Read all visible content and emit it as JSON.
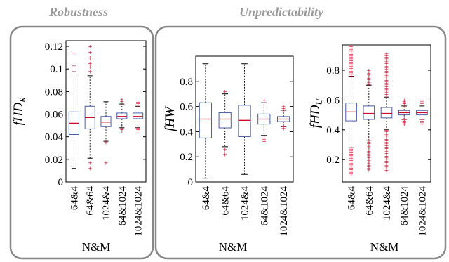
{
  "sections": [
    {
      "title": "Robustness"
    },
    {
      "title": "Unpredictability"
    }
  ],
  "colors": {
    "box": "#4a5fa8",
    "median": "#c8102e",
    "outlier": "#c8102e",
    "whisker": "#000000",
    "frame": "#888888",
    "section_title": "#9a9a9a"
  },
  "chart_data": [
    {
      "type": "box",
      "ylabel": "fHD",
      "ylabel_sub": "R",
      "xlabel": "N&M",
      "ylim": [
        0,
        0.125
      ],
      "yticks": [
        0,
        0.02,
        0.04,
        0.06,
        0.08,
        0.1,
        0.12
      ],
      "ytick_labels": [
        "0",
        "0.02",
        "0.04",
        "0.06",
        "0.08",
        "0.1",
        "0.12"
      ],
      "categories": [
        "64&4",
        "64&64",
        "1024&4",
        "64&1024",
        "1024&1024"
      ],
      "boxes": [
        {
          "whislo": 0.012,
          "q1": 0.042,
          "med": 0.052,
          "q3": 0.062,
          "whishi": 0.093,
          "fliers": [
            0.098,
            0.103,
            0.114
          ],
          "dense": false
        },
        {
          "whislo": 0.021,
          "q1": 0.047,
          "med": 0.057,
          "q3": 0.067,
          "whishi": 0.094,
          "fliers": [
            0.012,
            0.017,
            0.098,
            0.102,
            0.105,
            0.11,
            0.115,
            0.12
          ],
          "dense": false
        },
        {
          "whislo": 0.036,
          "q1": 0.049,
          "med": 0.053,
          "q3": 0.058,
          "whishi": 0.071,
          "fliers": [
            0.017,
            0.035
          ],
          "dense": true
        },
        {
          "whislo": 0.048,
          "q1": 0.056,
          "med": 0.058,
          "q3": 0.061,
          "whishi": 0.069,
          "fliers": [
            0.045,
            0.048,
            0.07,
            0.073
          ],
          "dense": true
        },
        {
          "whislo": 0.048,
          "q1": 0.056,
          "med": 0.058,
          "q3": 0.061,
          "whishi": 0.067,
          "fliers": [
            0.045,
            0.048,
            0.068,
            0.071
          ],
          "dense": true
        }
      ]
    },
    {
      "type": "box",
      "ylabel": "fHW",
      "ylabel_sub": "",
      "xlabel": "N&M",
      "ylim": [
        0,
        1.0
      ],
      "yticks": [
        0,
        0.2,
        0.4,
        0.6,
        0.8
      ],
      "ytick_labels": [
        "0",
        "0.2",
        "0.4",
        "0.6",
        "0.8"
      ],
      "categories": [
        "64&4",
        "64&64",
        "1024&4",
        "64&1024",
        "1024&1024"
      ],
      "boxes": [
        {
          "whislo": 0.03,
          "q1": 0.35,
          "med": 0.5,
          "q3": 0.63,
          "whishi": 0.94,
          "fliers": [],
          "dense": false
        },
        {
          "whislo": 0.28,
          "q1": 0.43,
          "med": 0.5,
          "q3": 0.55,
          "whishi": 0.7,
          "fliers": [
            0.22,
            0.26,
            0.72
          ],
          "dense": false
        },
        {
          "whislo": 0.06,
          "q1": 0.36,
          "med": 0.49,
          "q3": 0.61,
          "whishi": 0.94,
          "fliers": [],
          "dense": false
        },
        {
          "whislo": 0.37,
          "q1": 0.46,
          "med": 0.5,
          "q3": 0.54,
          "whishi": 0.63,
          "fliers": [
            0.32,
            0.35,
            0.64,
            0.65
          ],
          "dense": true
        },
        {
          "whislo": 0.44,
          "q1": 0.48,
          "med": 0.5,
          "q3": 0.52,
          "whishi": 0.57,
          "fliers": [
            0.42,
            0.44,
            0.57,
            0.6
          ],
          "dense": true
        }
      ]
    },
    {
      "type": "box",
      "ylabel": "fHD",
      "ylabel_sub": "U",
      "xlabel": "N&M",
      "ylim": [
        0.05,
        0.97
      ],
      "yticks": [
        0.2,
        0.4,
        0.6,
        0.8
      ],
      "ytick_labels": [
        "0.2",
        "0.4",
        "0.6",
        "0.8"
      ],
      "categories": [
        "64&4",
        "64&64",
        "1024&4",
        "64&1024",
        "1024&1024"
      ],
      "boxes": [
        {
          "whislo": 0.28,
          "q1": 0.46,
          "med": 0.52,
          "q3": 0.58,
          "whishi": 0.76,
          "fliers": [
            0.1,
            0.28,
            0.76,
            0.96
          ],
          "dense": true
        },
        {
          "whislo": 0.33,
          "q1": 0.47,
          "med": 0.51,
          "q3": 0.56,
          "whishi": 0.7,
          "fliers": [
            0.13,
            0.33,
            0.7,
            0.8
          ],
          "dense": true
        },
        {
          "whislo": 0.4,
          "q1": 0.48,
          "med": 0.51,
          "q3": 0.55,
          "whishi": 0.62,
          "fliers": [
            0.13,
            0.4,
            0.62,
            0.91
          ],
          "dense": true
        },
        {
          "whislo": 0.47,
          "q1": 0.5,
          "med": 0.515,
          "q3": 0.53,
          "whishi": 0.56,
          "fliers": [
            0.43,
            0.47,
            0.56,
            0.6
          ],
          "dense": true
        },
        {
          "whislo": 0.47,
          "q1": 0.5,
          "med": 0.515,
          "q3": 0.53,
          "whishi": 0.56,
          "fliers": [
            0.43,
            0.47,
            0.56,
            0.6
          ],
          "dense": true
        }
      ]
    }
  ]
}
